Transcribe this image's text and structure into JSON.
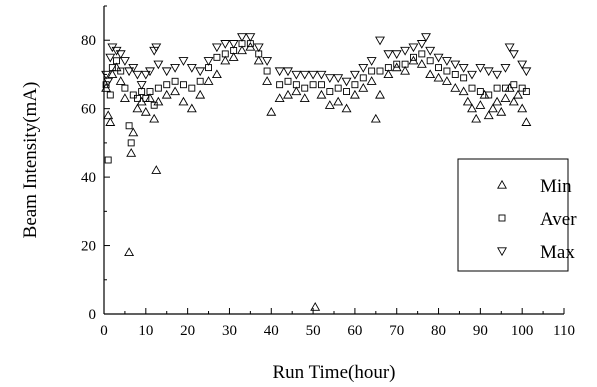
{
  "chart_data": {
    "type": "scatter",
    "title": "",
    "xlabel": "Run Time(hour)",
    "ylabel": "Beam Intensity(mA)",
    "xlim": [
      0,
      110
    ],
    "ylim": [
      0,
      90
    ],
    "xticks": [
      "0",
      "10",
      "20",
      "30",
      "40",
      "50",
      "60",
      "70",
      "80",
      "90",
      "100",
      "110"
    ],
    "yticks": [
      "0",
      "20",
      "40",
      "60",
      "80"
    ],
    "grid": false,
    "legend_position": "right",
    "series": [
      {
        "name": "Min",
        "marker": "triangle-up",
        "points": [
          [
            0.5,
            66
          ],
          [
            1,
            58
          ],
          [
            1.5,
            56
          ],
          [
            2,
            70
          ],
          [
            3,
            72
          ],
          [
            4,
            68
          ],
          [
            5,
            63
          ],
          [
            6,
            18
          ],
          [
            6.5,
            47
          ],
          [
            7,
            53
          ],
          [
            8,
            60
          ],
          [
            9,
            62
          ],
          [
            10,
            59
          ],
          [
            11,
            63
          ],
          [
            12,
            57
          ],
          [
            12.5,
            42
          ],
          [
            13,
            62
          ],
          [
            15,
            64
          ],
          [
            17,
            65
          ],
          [
            19,
            62
          ],
          [
            21,
            60
          ],
          [
            23,
            64
          ],
          [
            25,
            68
          ],
          [
            27,
            70
          ],
          [
            29,
            74
          ],
          [
            31,
            75
          ],
          [
            33,
            77
          ],
          [
            35,
            78
          ],
          [
            37,
            74
          ],
          [
            39,
            68
          ],
          [
            40,
            59
          ],
          [
            42,
            63
          ],
          [
            44,
            64
          ],
          [
            46,
            65
          ],
          [
            48,
            63
          ],
          [
            50.5,
            2
          ],
          [
            52,
            64
          ],
          [
            54,
            61
          ],
          [
            56,
            62
          ],
          [
            58,
            60
          ],
          [
            60,
            64
          ],
          [
            62,
            66
          ],
          [
            64,
            68
          ],
          [
            65,
            57
          ],
          [
            66,
            64
          ],
          [
            68,
            70
          ],
          [
            70,
            72
          ],
          [
            72,
            71
          ],
          [
            74,
            74
          ],
          [
            76,
            73
          ],
          [
            78,
            70
          ],
          [
            80,
            69
          ],
          [
            82,
            68
          ],
          [
            84,
            66
          ],
          [
            86,
            65
          ],
          [
            87,
            62
          ],
          [
            88,
            60
          ],
          [
            89,
            57
          ],
          [
            90,
            61
          ],
          [
            91,
            64
          ],
          [
            92,
            58
          ],
          [
            93,
            60
          ],
          [
            94,
            62
          ],
          [
            95,
            59
          ],
          [
            96,
            63
          ],
          [
            97,
            66
          ],
          [
            98,
            62
          ],
          [
            99,
            64
          ],
          [
            100,
            60
          ],
          [
            101,
            56
          ]
        ]
      },
      {
        "name": "Aver",
        "marker": "square",
        "points": [
          [
            0.5,
            67
          ],
          [
            1,
            45
          ],
          [
            1.5,
            64
          ],
          [
            2,
            72
          ],
          [
            3,
            74
          ],
          [
            4,
            71
          ],
          [
            5,
            66
          ],
          [
            6,
            55
          ],
          [
            6.5,
            50
          ],
          [
            7,
            64
          ],
          [
            8,
            63
          ],
          [
            9,
            65
          ],
          [
            10,
            63
          ],
          [
            11,
            65
          ],
          [
            12,
            61
          ],
          [
            13,
            66
          ],
          [
            15,
            67
          ],
          [
            17,
            68
          ],
          [
            19,
            67
          ],
          [
            21,
            66
          ],
          [
            23,
            68
          ],
          [
            25,
            72
          ],
          [
            27,
            75
          ],
          [
            29,
            76
          ],
          [
            31,
            77
          ],
          [
            33,
            79
          ],
          [
            35,
            79
          ],
          [
            37,
            76
          ],
          [
            39,
            71
          ],
          [
            42,
            67
          ],
          [
            44,
            68
          ],
          [
            46,
            67
          ],
          [
            48,
            66
          ],
          [
            50,
            67
          ],
          [
            52,
            67
          ],
          [
            54,
            65
          ],
          [
            56,
            66
          ],
          [
            58,
            65
          ],
          [
            60,
            67
          ],
          [
            62,
            69
          ],
          [
            64,
            71
          ],
          [
            66,
            71
          ],
          [
            68,
            72
          ],
          [
            70,
            73
          ],
          [
            72,
            73
          ],
          [
            74,
            75
          ],
          [
            76,
            76
          ],
          [
            78,
            74
          ],
          [
            80,
            72
          ],
          [
            82,
            71
          ],
          [
            84,
            70
          ],
          [
            86,
            69
          ],
          [
            88,
            66
          ],
          [
            90,
            65
          ],
          [
            92,
            64
          ],
          [
            94,
            66
          ],
          [
            96,
            66
          ],
          [
            98,
            67
          ],
          [
            100,
            66
          ],
          [
            101,
            65
          ]
        ]
      },
      {
        "name": "Max",
        "marker": "triangle-down",
        "points": [
          [
            0.5,
            70
          ],
          [
            1,
            68
          ],
          [
            1.5,
            75
          ],
          [
            2,
            78
          ],
          [
            3,
            77
          ],
          [
            4,
            76
          ],
          [
            5,
            74
          ],
          [
            6,
            71
          ],
          [
            7,
            72
          ],
          [
            8,
            70
          ],
          [
            9,
            67
          ],
          [
            10,
            70
          ],
          [
            11,
            71
          ],
          [
            12,
            77
          ],
          [
            12.5,
            78
          ],
          [
            13,
            73
          ],
          [
            15,
            71
          ],
          [
            17,
            72
          ],
          [
            19,
            74
          ],
          [
            21,
            72
          ],
          [
            23,
            71
          ],
          [
            25,
            74
          ],
          [
            27,
            78
          ],
          [
            29,
            79
          ],
          [
            31,
            79
          ],
          [
            33,
            81
          ],
          [
            35,
            81
          ],
          [
            37,
            78
          ],
          [
            39,
            74
          ],
          [
            42,
            71
          ],
          [
            44,
            71
          ],
          [
            46,
            70
          ],
          [
            48,
            70
          ],
          [
            50,
            70
          ],
          [
            52,
            70
          ],
          [
            54,
            69
          ],
          [
            56,
            69
          ],
          [
            58,
            68
          ],
          [
            60,
            70
          ],
          [
            62,
            72
          ],
          [
            64,
            74
          ],
          [
            66,
            80
          ],
          [
            68,
            76
          ],
          [
            70,
            76
          ],
          [
            72,
            77
          ],
          [
            74,
            78
          ],
          [
            76,
            79
          ],
          [
            77,
            81
          ],
          [
            78,
            77
          ],
          [
            80,
            75
          ],
          [
            82,
            74
          ],
          [
            84,
            73
          ],
          [
            86,
            72
          ],
          [
            88,
            70
          ],
          [
            90,
            72
          ],
          [
            92,
            71
          ],
          [
            94,
            70
          ],
          [
            96,
            72
          ],
          [
            97,
            78
          ],
          [
            98,
            76
          ],
          [
            100,
            73
          ],
          [
            101,
            71
          ]
        ]
      }
    ]
  }
}
